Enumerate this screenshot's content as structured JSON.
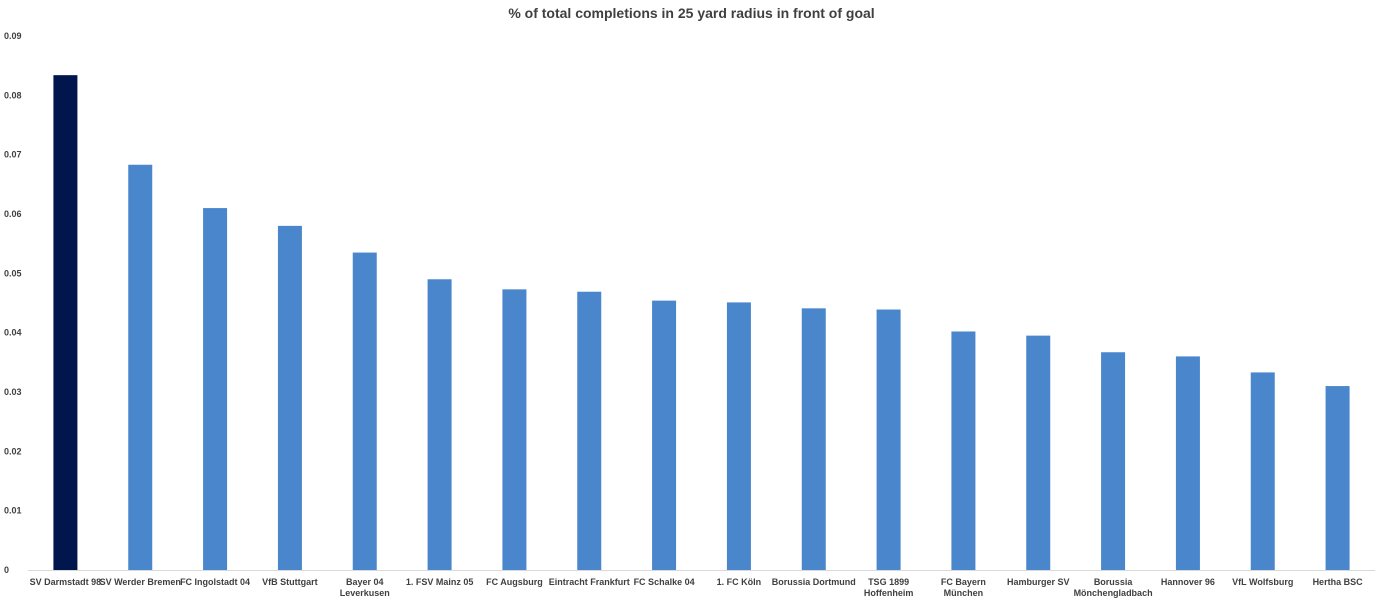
{
  "chart_data": {
    "type": "bar",
    "title": "% of total completions in 25 yard radius in front of goal",
    "xlabel": "",
    "ylabel": "",
    "ylim": [
      0,
      0.09
    ],
    "yticks": [
      "0",
      "0.01",
      "0.02",
      "0.03",
      "0.04",
      "0.05",
      "0.06",
      "0.07",
      "0.08",
      "0.09"
    ],
    "ytick_values": [
      0,
      0.01,
      0.02,
      0.03,
      0.04,
      0.05,
      0.06,
      0.07,
      0.08,
      0.09
    ],
    "grid": false,
    "categories": [
      "SV Darmstadt 98",
      "SV Werder Bremen",
      "FC Ingolstadt 04",
      "VfB Stuttgart",
      "Bayer 04 Leverkusen",
      "1. FSV Mainz 05",
      "FC Augsburg",
      "Eintracht Frankfurt",
      "FC Schalke 04",
      "1. FC Köln",
      "Borussia Dortmund",
      "TSG 1899 Hoffenheim",
      "FC Bayern München",
      "Hamburger SV",
      "Borussia Mönchengladbach",
      "Hannover 96",
      "VfL Wolfsburg",
      "Hertha BSC"
    ],
    "category_lines": [
      [
        "SV Darmstadt 98"
      ],
      [
        "SV Werder Bremen"
      ],
      [
        "FC Ingolstadt 04"
      ],
      [
        "VfB Stuttgart"
      ],
      [
        "Bayer 04",
        "Leverkusen"
      ],
      [
        "1. FSV Mainz 05"
      ],
      [
        "FC Augsburg"
      ],
      [
        "Eintracht Frankfurt"
      ],
      [
        "FC Schalke 04"
      ],
      [
        "1. FC Köln"
      ],
      [
        "Borussia Dortmund"
      ],
      [
        "TSG 1899",
        "Hoffenheim"
      ],
      [
        "FC Bayern",
        "München"
      ],
      [
        "Hamburger SV"
      ],
      [
        "Borussia",
        "Mönchengladbach"
      ],
      [
        "Hannover 96"
      ],
      [
        "VfL Wolfsburg"
      ],
      [
        "Hertha BSC"
      ]
    ],
    "values": [
      0.0834,
      0.0683,
      0.061,
      0.058,
      0.0535,
      0.049,
      0.0473,
      0.0469,
      0.0454,
      0.0451,
      0.0441,
      0.0439,
      0.0402,
      0.0395,
      0.0367,
      0.036,
      0.0333,
      0.031
    ],
    "colors": {
      "highlight": "#00164D",
      "bar": "#4A86CB",
      "axis": "#D9D9D9",
      "text": "#404040"
    },
    "highlight_index": 0
  }
}
